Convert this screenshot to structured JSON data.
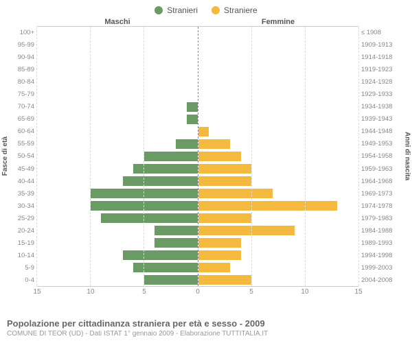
{
  "legend": {
    "male": {
      "label": "Stranieri",
      "color": "#6b9b64"
    },
    "female": {
      "label": "Straniere",
      "color": "#f4b93f"
    }
  },
  "headers": {
    "male": "Maschi",
    "female": "Femmine"
  },
  "axis_labels": {
    "left": "Fasce di età",
    "right": "Anni di nascita"
  },
  "chart": {
    "type": "population-pyramid",
    "xmax": 15,
    "xtick_step": 5,
    "xticks_left": [
      15,
      10,
      5,
      0
    ],
    "xticks_right": [
      0,
      5,
      10,
      15
    ],
    "grid_color": "#dddddd",
    "center_line_color": "#888888",
    "background_color": "#ffffff",
    "bar_height_ratio": 0.78,
    "rows": [
      {
        "age": "100+",
        "birth": "≤ 1908",
        "m": 0,
        "f": 0
      },
      {
        "age": "95-99",
        "birth": "1909-1913",
        "m": 0,
        "f": 0
      },
      {
        "age": "90-94",
        "birth": "1914-1918",
        "m": 0,
        "f": 0
      },
      {
        "age": "85-89",
        "birth": "1919-1923",
        "m": 0,
        "f": 0
      },
      {
        "age": "80-84",
        "birth": "1924-1928",
        "m": 0,
        "f": 0
      },
      {
        "age": "75-79",
        "birth": "1929-1933",
        "m": 0,
        "f": 0
      },
      {
        "age": "70-74",
        "birth": "1934-1938",
        "m": 1,
        "f": 0
      },
      {
        "age": "65-69",
        "birth": "1939-1943",
        "m": 1,
        "f": 0
      },
      {
        "age": "60-64",
        "birth": "1944-1948",
        "m": 0,
        "f": 1
      },
      {
        "age": "55-59",
        "birth": "1949-1953",
        "m": 2,
        "f": 3
      },
      {
        "age": "50-54",
        "birth": "1954-1958",
        "m": 5,
        "f": 4
      },
      {
        "age": "45-49",
        "birth": "1959-1963",
        "m": 6,
        "f": 5
      },
      {
        "age": "40-44",
        "birth": "1964-1968",
        "m": 7,
        "f": 5
      },
      {
        "age": "35-39",
        "birth": "1969-1973",
        "m": 10,
        "f": 7
      },
      {
        "age": "30-34",
        "birth": "1974-1978",
        "m": 10,
        "f": 13
      },
      {
        "age": "25-29",
        "birth": "1979-1983",
        "m": 9,
        "f": 5
      },
      {
        "age": "20-24",
        "birth": "1984-1988",
        "m": 4,
        "f": 9
      },
      {
        "age": "15-19",
        "birth": "1989-1993",
        "m": 4,
        "f": 4
      },
      {
        "age": "10-14",
        "birth": "1994-1998",
        "m": 7,
        "f": 4
      },
      {
        "age": "5-9",
        "birth": "1999-2003",
        "m": 6,
        "f": 3
      },
      {
        "age": "0-4",
        "birth": "2004-2008",
        "m": 5,
        "f": 5
      }
    ]
  },
  "footer": {
    "title": "Popolazione per cittadinanza straniera per età e sesso - 2009",
    "subtitle": "COMUNE DI TEOR (UD) - Dati ISTAT 1° gennaio 2009 - Elaborazione TUTTITALIA.IT"
  },
  "typography": {
    "legend_fontsize": 12,
    "header_fontsize": 11,
    "axis_tick_fontsize": 9.5,
    "axis_label_fontsize": 10,
    "title_fontsize": 13,
    "subtitle_fontsize": 10,
    "font_family": "Arial"
  }
}
